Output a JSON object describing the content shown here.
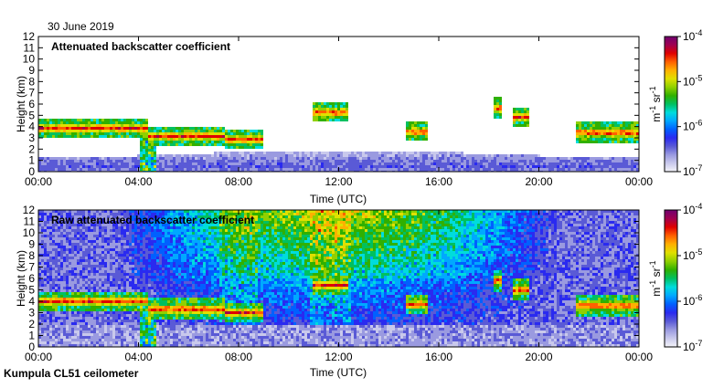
{
  "date_label": "30 June 2019",
  "footer_label": "Kumpula CL51 ceilometer",
  "colormap": [
    "#f4f4f9",
    "#c9c9ec",
    "#9a9ae0",
    "#5a5ad6",
    "#2a2af0",
    "#0060ff",
    "#00a8ff",
    "#00dcdc",
    "#00c060",
    "#30b000",
    "#90d000",
    "#e0e000",
    "#ffb000",
    "#ff6000",
    "#e00000",
    "#a00050",
    "#700070"
  ],
  "chart_data": [
    {
      "type": "heatmap",
      "title": "Attenuated backscatter coefficient",
      "xlabel": "Time (UTC)",
      "ylabel": "Height (km)",
      "xticks": [
        "00:00",
        "04:00",
        "08:00",
        "12:00",
        "16:00",
        "20:00",
        "00:00"
      ],
      "xlim_hours": [
        0,
        24
      ],
      "yticks": [
        0,
        1,
        2,
        3,
        4,
        5,
        6,
        7,
        8,
        9,
        10,
        11,
        12
      ],
      "ylim_km": [
        0,
        12
      ],
      "colorbar": {
        "scale": "log",
        "range": [
          1e-07,
          0.0001
        ],
        "ticks": [
          "10",
          "10",
          "10",
          "10"
        ],
        "exponents": [
          "-7",
          "-6",
          "-5",
          "-4"
        ],
        "unit": "m",
        "unit_exp": "-1",
        "unit2": "sr",
        "unit2_exp": "-1"
      },
      "features": {
        "cloud_layers": [
          {
            "t0": 0.0,
            "t1": 4.4,
            "h": 4.0
          },
          {
            "t0": 4.4,
            "t1": 7.5,
            "h": 3.3
          },
          {
            "t0": 7.5,
            "t1": 9.0,
            "h": 3.0
          },
          {
            "t0": 11.0,
            "t1": 12.4,
            "h": 5.4
          },
          {
            "t0": 14.7,
            "t1": 15.6,
            "h": 3.7
          },
          {
            "t0": 18.2,
            "t1": 18.5,
            "h": 5.8
          },
          {
            "t0": 19.0,
            "t1": 19.6,
            "h": 5.0
          },
          {
            "t0": 21.5,
            "t1": 24.0,
            "h": 3.6
          }
        ],
        "boundary_layer_km": 1.5,
        "precipitation_hours": [
          4.1,
          4.7
        ]
      }
    },
    {
      "type": "heatmap",
      "title": "Raw attenuated backscatter coefficient",
      "xlabel": "Time (UTC)",
      "ylabel": "Height (km)",
      "xticks": [
        "00:00",
        "04:00",
        "08:00",
        "12:00",
        "16:00",
        "20:00",
        "00:00"
      ],
      "xlim_hours": [
        0,
        24
      ],
      "yticks": [
        0,
        1,
        2,
        3,
        4,
        5,
        6,
        7,
        8,
        9,
        10,
        11,
        12
      ],
      "ylim_km": [
        0,
        12
      ],
      "colorbar": {
        "scale": "log",
        "range": [
          1e-07,
          0.0001
        ],
        "ticks": [
          "10",
          "10",
          "10",
          "10"
        ],
        "exponents": [
          "-7",
          "-6",
          "-5",
          "-4"
        ],
        "unit": "m",
        "unit_exp": "-1",
        "unit2": "sr",
        "unit2_exp": "-1"
      }
    }
  ]
}
